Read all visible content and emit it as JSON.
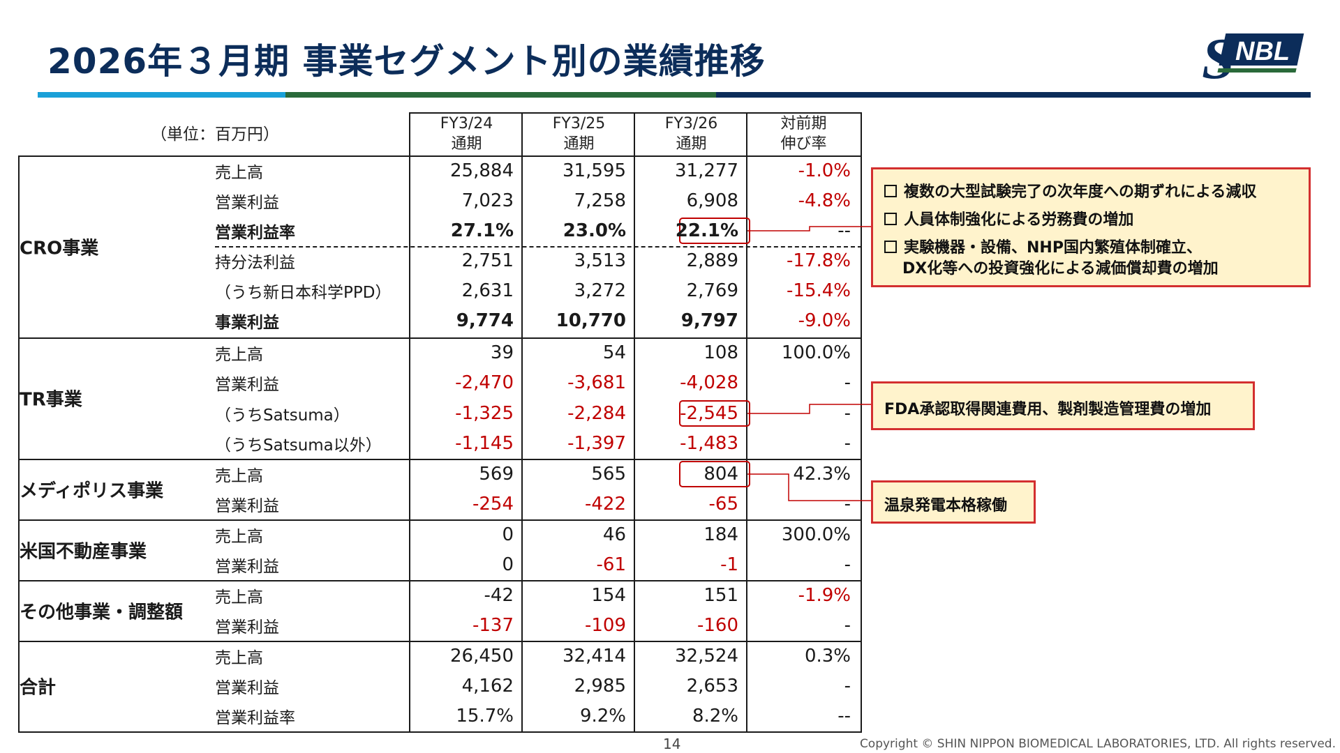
{
  "title": "2026年３月期 事業セグメント別の業績推移",
  "logo_text": "SNBL",
  "unit_label": "（単位：百万円）",
  "columns": [
    {
      "period": "FY3/24",
      "note": "通期"
    },
    {
      "period": "FY3/25",
      "note": "通期"
    },
    {
      "period": "FY3/26",
      "note": "通期"
    },
    {
      "period": "対前期",
      "note": "伸び率"
    }
  ],
  "segments": [
    {
      "name": "CRO事業",
      "rows": [
        {
          "label": "売上高",
          "values": [
            "25,884",
            "31,595",
            "31,277",
            "-1.0%"
          ]
        },
        {
          "label": "営業利益",
          "values": [
            "7,023",
            "7,258",
            "6,908",
            "-4.8%"
          ]
        },
        {
          "label": "営業利益率",
          "values": [
            "27.1%",
            "23.0%",
            "22.1%",
            "--"
          ]
        },
        {
          "label": "持分法利益",
          "values": [
            "2,751",
            "3,513",
            "2,889",
            "-17.8%"
          ]
        },
        {
          "label": "（うち新日本科学PPD）",
          "values": [
            "2,631",
            "3,272",
            "2,769",
            "-15.4%"
          ]
        },
        {
          "label": "事業利益",
          "values": [
            "9,774",
            "10,770",
            "9,797",
            "-9.0%"
          ]
        }
      ]
    },
    {
      "name": "TR事業",
      "rows": [
        {
          "label": "売上高",
          "values": [
            "39",
            "54",
            "108",
            "100.0%"
          ]
        },
        {
          "label": "営業利益",
          "values": [
            "-2,470",
            "-3,681",
            "-4,028",
            "-"
          ]
        },
        {
          "label": "（うちSatsuma）",
          "values": [
            "-1,325",
            "-2,284",
            "-2,545",
            "-"
          ]
        },
        {
          "label": "（うちSatsuma以外）",
          "values": [
            "-1,145",
            "-1,397",
            "-1,483",
            "-"
          ]
        }
      ]
    },
    {
      "name": "メディポリス事業",
      "rows": [
        {
          "label": "売上高",
          "values": [
            "569",
            "565",
            "804",
            "42.3%"
          ]
        },
        {
          "label": "営業利益",
          "values": [
            "-254",
            "-422",
            "-65",
            "-"
          ]
        }
      ]
    },
    {
      "name": "米国不動産事業",
      "rows": [
        {
          "label": "売上高",
          "values": [
            "0",
            "46",
            "184",
            "300.0%"
          ]
        },
        {
          "label": "営業利益",
          "values": [
            "0",
            "-61",
            "-1",
            "-"
          ]
        }
      ]
    },
    {
      "name": "その他事業・調整額",
      "rows": [
        {
          "label": "売上高",
          "values": [
            "-42",
            "154",
            "151",
            "-1.9%"
          ]
        },
        {
          "label": "営業利益",
          "values": [
            "-137",
            "-109",
            "-160",
            "-"
          ]
        }
      ]
    },
    {
      "name": "合計",
      "rows": [
        {
          "label": "売上高",
          "values": [
            "26,450",
            "32,414",
            "32,524",
            "0.3%"
          ]
        },
        {
          "label": "営業利益",
          "values": [
            "4,162",
            "2,985",
            "2,653",
            "-"
          ]
        },
        {
          "label": "営業利益率",
          "values": [
            "15.7%",
            "9.2%",
            "8.2%",
            "--"
          ]
        }
      ]
    }
  ],
  "callouts": [
    {
      "items": [
        "複数の大型試験完了の次年度への期ずれによる減収",
        "人員体制強化による労務費の増加",
        "実験機器・設備、NHP国内繁殖体制確立、",
        "DX化等への投資強化による減価償却費の増加"
      ]
    },
    {
      "items": [
        "FDA承認取得関連費用、製剤製造管理費の増加"
      ]
    },
    {
      "items": [
        "温泉発電本格稼働"
      ]
    }
  ],
  "colors": {
    "title": "#0c2d5a",
    "bar": [
      "#1aa0d8",
      "#2a6a3a",
      "#0c2d5a"
    ],
    "negative": "#c00000",
    "callout_fill": "#fff3cc",
    "callout_border": "#d32f2f"
  },
  "footer": {
    "page_number": "14",
    "copyright": "Copyright © SHIN NIPPON BIOMEDICAL LABORATORIES, LTD. All rights reserved."
  }
}
